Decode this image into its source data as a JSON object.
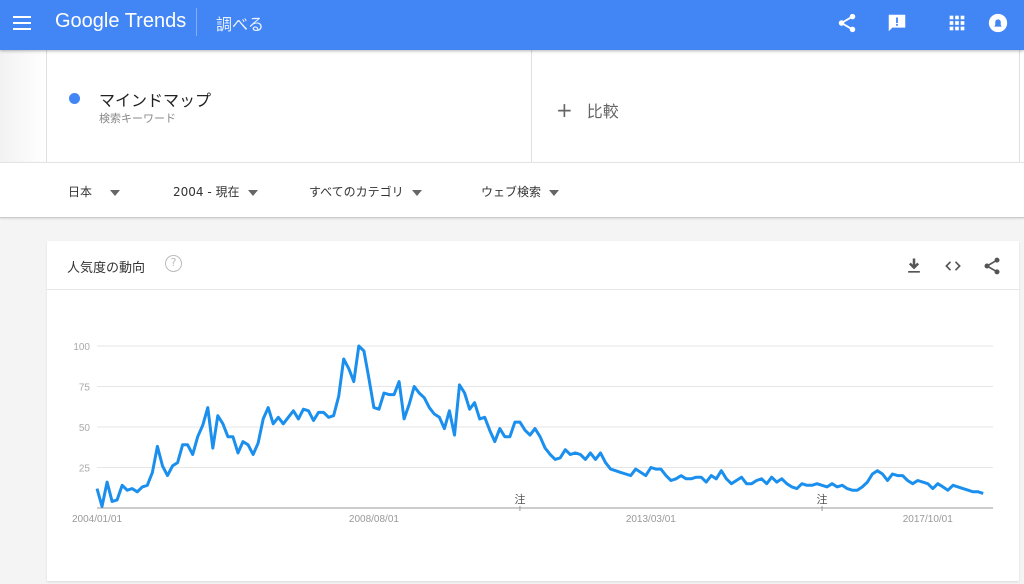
{
  "header": {
    "logo": "Google Trends",
    "section": "調べる",
    "brand_color": "#4285f4",
    "icons": [
      "menu-icon",
      "share-icon",
      "feedback-icon",
      "apps-icon",
      "notifications-icon"
    ]
  },
  "search": {
    "term": "マインドマップ",
    "term_type": "検索キーワード",
    "term_color": "#4285f4",
    "compare_label": "比較",
    "compare_icon": "+"
  },
  "filters": [
    {
      "label": "日本"
    },
    {
      "label": "2004 - 現在"
    },
    {
      "label": "すべてのカテゴリ"
    },
    {
      "label": "ウェブ検索"
    }
  ],
  "card": {
    "title": "人気度の動向",
    "help": "?",
    "actions": [
      "download-icon",
      "embed-icon",
      "share-icon"
    ]
  },
  "chart_data": {
    "type": "line",
    "title": "人気度の動向",
    "frequency": "monthly",
    "x_start": "2004-01",
    "x_end": "2018-09",
    "ylim": [
      0,
      100
    ],
    "yticks": [
      "100",
      "75",
      "50",
      "25"
    ],
    "xtick_labels": [
      "2004/01/01",
      "2008/08/01",
      "2013/03/01",
      "2017/10/01"
    ],
    "grid": true,
    "line_color": "#1a8fed",
    "annotations": [
      {
        "date": "2011-01",
        "label": "注"
      },
      {
        "date": "2016-01",
        "label": "注"
      }
    ],
    "series": [
      {
        "values": [
          12,
          1,
          16,
          4,
          5,
          14,
          11,
          12,
          10,
          13,
          14,
          22,
          38,
          26,
          20,
          26,
          28,
          39,
          39,
          33,
          44,
          51,
          62,
          37,
          57,
          52,
          44,
          44,
          34,
          41,
          39,
          33,
          40,
          55,
          62,
          52,
          56,
          52,
          56,
          60,
          55,
          61,
          60,
          54,
          59,
          59,
          56,
          57,
          69,
          92,
          86,
          78,
          100,
          97,
          80,
          62,
          61,
          71,
          70,
          70,
          78,
          55,
          64,
          75,
          71,
          68,
          62,
          58,
          56,
          49,
          60,
          45,
          76,
          71,
          61,
          65,
          55,
          56,
          48,
          41,
          49,
          44,
          44,
          53,
          53,
          48,
          45,
          49,
          44,
          37,
          33,
          30,
          31,
          36,
          33,
          34,
          33,
          30,
          34,
          30,
          34,
          28,
          24,
          23,
          22,
          21,
          20,
          24,
          22,
          20,
          25,
          24,
          24,
          20,
          17,
          18,
          20,
          18,
          18,
          19,
          19,
          16,
          20,
          18,
          23,
          18,
          15,
          17,
          19,
          15,
          15,
          17,
          18,
          15,
          19,
          16,
          18,
          15,
          13,
          12,
          15,
          14,
          14,
          15,
          14,
          13,
          15,
          13,
          14,
          12,
          11,
          11,
          13,
          16,
          21,
          23,
          21,
          17,
          21,
          20,
          20,
          17,
          15,
          17,
          16,
          15,
          12,
          15,
          13,
          11,
          14,
          13,
          12,
          11,
          10,
          10,
          9
        ]
      }
    ]
  }
}
